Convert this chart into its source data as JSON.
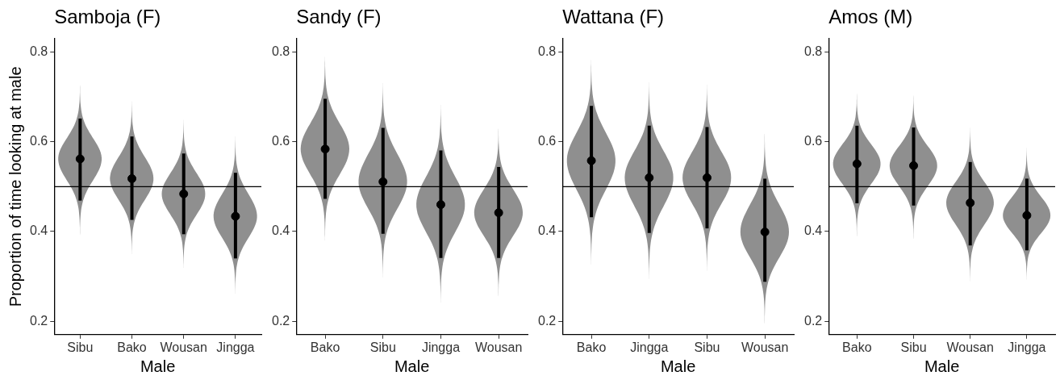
{
  "chart_data": [
    {
      "type": "scatter",
      "title": "Samboja (F)",
      "xlabel": "Male",
      "ylabel": "Proportion of time looking at male",
      "categories": [
        "Sibu",
        "Bako",
        "Wousan",
        "Jingga"
      ],
      "series": [
        {
          "color": "#000000",
          "values": [
            0.562,
            0.518,
            0.484,
            0.434
          ],
          "errors": [
            [
              0.469,
              0.652
            ],
            [
              0.426,
              0.612
            ],
            [
              0.394,
              0.574
            ],
            [
              0.34,
              0.531
            ]
          ]
        }
      ],
      "ylim": [
        0.17,
        0.83
      ],
      "yticks": [
        0.2,
        0.4,
        0.6,
        0.8
      ],
      "ref_lines": [
        {
          "axis": "y",
          "value": 0.5,
          "color": "#000000"
        }
      ],
      "marker": "circle"
    },
    {
      "type": "scatter",
      "title": "Sandy (F)",
      "xlabel": "Male",
      "categories": [
        "Bako",
        "Sibu",
        "Jingga",
        "Wousan"
      ],
      "series": [
        {
          "color": "#000000",
          "values": [
            0.584,
            0.511,
            0.46,
            0.442
          ],
          "errors": [
            [
              0.473,
              0.696
            ],
            [
              0.395,
              0.631
            ],
            [
              0.341,
              0.581
            ],
            [
              0.341,
              0.544
            ]
          ]
        }
      ],
      "ylim": [
        0.17,
        0.83
      ],
      "yticks": [
        0.2,
        0.4,
        0.6,
        0.8
      ],
      "ref_lines": [
        {
          "axis": "y",
          "value": 0.5,
          "color": "#000000"
        }
      ],
      "marker": "circle"
    },
    {
      "type": "scatter",
      "title": "Wattana (F)",
      "xlabel": "Male",
      "categories": [
        "Bako",
        "Jingga",
        "Sibu",
        "Wousan"
      ],
      "series": [
        {
          "color": "#000000",
          "values": [
            0.558,
            0.52,
            0.52,
            0.399
          ],
          "errors": [
            [
              0.432,
              0.68
            ],
            [
              0.397,
              0.636
            ],
            [
              0.407,
              0.633
            ],
            [
              0.288,
              0.518
            ]
          ]
        }
      ],
      "ylim": [
        0.17,
        0.83
      ],
      "yticks": [
        0.2,
        0.4,
        0.6,
        0.8
      ],
      "ref_lines": [
        {
          "axis": "y",
          "value": 0.5,
          "color": "#000000"
        }
      ],
      "marker": "circle"
    },
    {
      "type": "scatter",
      "title": "Amos (M)",
      "xlabel": "Male",
      "categories": [
        "Bako",
        "Sibu",
        "Wousan",
        "Jingga"
      ],
      "series": [
        {
          "color": "#000000",
          "values": [
            0.551,
            0.547,
            0.464,
            0.436
          ],
          "errors": [
            [
              0.463,
              0.636
            ],
            [
              0.458,
              0.632
            ],
            [
              0.369,
              0.555
            ],
            [
              0.358,
              0.518
            ]
          ]
        }
      ],
      "ylim": [
        0.17,
        0.83
      ],
      "yticks": [
        0.2,
        0.4,
        0.6,
        0.8
      ],
      "ref_lines": [
        {
          "axis": "y",
          "value": 0.5,
          "color": "#000000"
        }
      ],
      "marker": "circle"
    }
  ]
}
